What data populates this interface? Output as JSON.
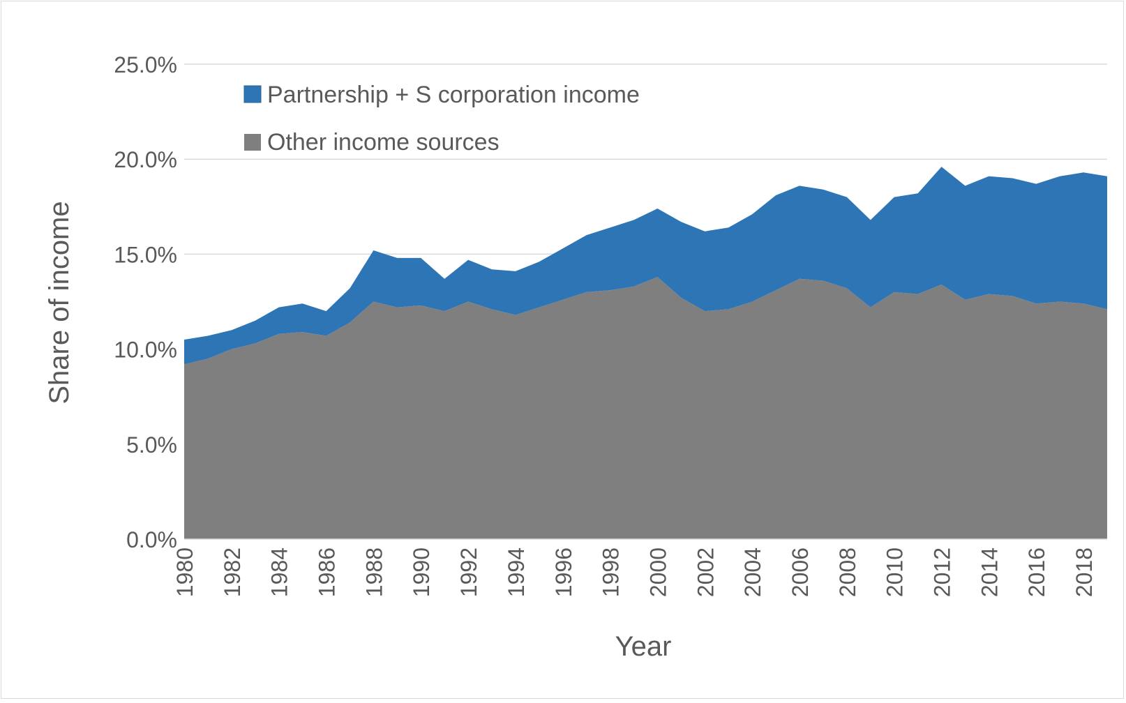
{
  "chart_data": {
    "type": "area",
    "stacked": true,
    "x": [
      1980,
      1981,
      1982,
      1983,
      1984,
      1985,
      1986,
      1987,
      1988,
      1989,
      1990,
      1991,
      1992,
      1993,
      1994,
      1995,
      1996,
      1997,
      1998,
      1999,
      2000,
      2001,
      2002,
      2003,
      2004,
      2005,
      2006,
      2007,
      2008,
      2009,
      2010,
      2011,
      2012,
      2013,
      2014,
      2015,
      2016,
      2017,
      2018,
      2019
    ],
    "x_tick_labels": [
      "1980",
      "1982",
      "1984",
      "1986",
      "1988",
      "1990",
      "1992",
      "1994",
      "1996",
      "1998",
      "2000",
      "2002",
      "2004",
      "2006",
      "2008",
      "2010",
      "2012",
      "2014",
      "2016",
      "2018"
    ],
    "xlabel": "Year",
    "ylabel": "Share of income",
    "ylim": [
      0,
      25
    ],
    "y_ticks": [
      0,
      5,
      10,
      15,
      20,
      25
    ],
    "y_tick_labels": [
      "0.0%",
      "5.0%",
      "10.0%",
      "15.0%",
      "20.0%",
      "25.0%"
    ],
    "grid": "horizontal",
    "legend_position": "top-left",
    "series": [
      {
        "name": "Other income sources",
        "color": "#7f7f7f",
        "values": [
          9.2,
          9.5,
          10.0,
          10.3,
          10.8,
          10.9,
          10.7,
          11.4,
          12.5,
          12.2,
          12.3,
          12.0,
          12.5,
          12.1,
          11.8,
          12.2,
          12.6,
          13.0,
          13.1,
          13.3,
          13.8,
          12.7,
          12.0,
          12.1,
          12.5,
          13.1,
          13.7,
          13.6,
          13.2,
          12.2,
          13.0,
          12.9,
          13.4,
          12.6,
          12.9,
          12.8,
          12.4,
          12.5,
          12.4,
          12.1
        ]
      },
      {
        "name": "Partnership + S corporation income",
        "color": "#2e75b6",
        "values": [
          1.3,
          1.2,
          1.0,
          1.2,
          1.4,
          1.5,
          1.3,
          1.8,
          2.7,
          2.6,
          2.5,
          1.7,
          2.2,
          2.1,
          2.3,
          2.4,
          2.7,
          3.0,
          3.3,
          3.5,
          3.6,
          4.0,
          4.2,
          4.3,
          4.6,
          5.0,
          4.9,
          4.8,
          4.8,
          4.6,
          5.0,
          5.3,
          6.2,
          6.0,
          6.2,
          6.2,
          6.3,
          6.6,
          6.9,
          7.0
        ]
      }
    ]
  }
}
